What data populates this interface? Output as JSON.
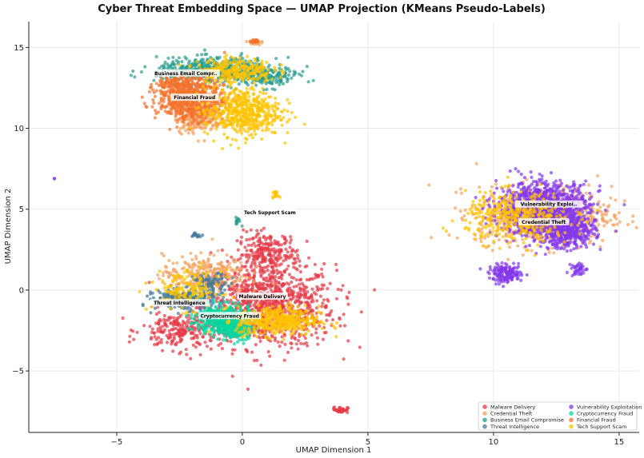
{
  "chart_data": {
    "type": "scatter",
    "title": "Cyber Threat Embedding Space — UMAP Projection (KMeans Pseudo-Labels)",
    "xlabel": "UMAP Dimension 1",
    "ylabel": "UMAP Dimension 2",
    "xlim": [
      -8.5,
      15.8
    ],
    "ylim": [
      -8.8,
      16.6
    ],
    "xticks": [
      -5,
      0,
      5,
      10,
      15
    ],
    "yticks": [
      -5,
      0,
      5,
      10,
      15
    ],
    "xtick_labels": [
      "−5",
      "0",
      "5",
      "10",
      "15"
    ],
    "ytick_labels": [
      "−5",
      "0",
      "5",
      "10",
      "15"
    ],
    "grid": true,
    "legend_position": "bottom-right",
    "series": [
      {
        "name": "Malware Delivery",
        "color": "#e63946",
        "blobs": [
          {
            "cx": 1.0,
            "cy": -1.0,
            "sx": 1.8,
            "sy": 1.7,
            "n": 950
          },
          {
            "cx": 1.0,
            "cy": 2.2,
            "sx": 0.8,
            "sy": 0.9,
            "n": 250
          },
          {
            "cx": -2.5,
            "cy": -2.5,
            "sx": 1.0,
            "sy": 0.8,
            "n": 220
          },
          {
            "cx": 3.9,
            "cy": -7.4,
            "sx": 0.2,
            "sy": 0.12,
            "n": 40
          }
        ]
      },
      {
        "name": "Credential Theft",
        "color": "#f4a261",
        "blobs": [
          {
            "cx": 12.0,
            "cy": 4.6,
            "sx": 1.8,
            "sy": 1.2,
            "n": 700
          },
          {
            "cx": -1.5,
            "cy": 1.0,
            "sx": 1.1,
            "sy": 0.8,
            "n": 260
          },
          {
            "cx": -1.8,
            "cy": 10.6,
            "sx": 0.6,
            "sy": 0.6,
            "n": 150
          },
          {
            "cx": 0.5,
            "cy": 15.3,
            "sx": 0.15,
            "sy": 0.1,
            "n": 20
          }
        ]
      },
      {
        "name": "Business Email Compromise",
        "color": "#2a9d8f",
        "blobs": [
          {
            "cx": -1.0,
            "cy": 13.6,
            "sx": 1.6,
            "sy": 0.5,
            "n": 520
          },
          {
            "cx": 1.0,
            "cy": 13.1,
            "sx": 0.8,
            "sy": 0.4,
            "n": 120
          },
          {
            "cx": -0.2,
            "cy": 4.3,
            "sx": 0.1,
            "sy": 0.15,
            "n": 15
          }
        ]
      },
      {
        "name": "Threat Intelligence",
        "color": "#457b9d",
        "blobs": [
          {
            "cx": -2.3,
            "cy": -0.6,
            "sx": 0.8,
            "sy": 0.4,
            "n": 320
          },
          {
            "cx": -1.2,
            "cy": 0.4,
            "sx": 0.5,
            "sy": 0.4,
            "n": 80
          },
          {
            "cx": -1.8,
            "cy": 3.4,
            "sx": 0.15,
            "sy": 0.1,
            "n": 15
          }
        ]
      },
      {
        "name": "Vulnerability Exploitation",
        "color": "#8338ec",
        "blobs": [
          {
            "cx": 12.0,
            "cy": 5.0,
            "sx": 1.2,
            "sy": 1.1,
            "n": 1100
          },
          {
            "cx": 13.0,
            "cy": 3.6,
            "sx": 0.7,
            "sy": 0.7,
            "n": 350
          },
          {
            "cx": 10.5,
            "cy": 1.0,
            "sx": 0.45,
            "sy": 0.35,
            "n": 160
          },
          {
            "cx": 13.4,
            "cy": 1.3,
            "sx": 0.2,
            "sy": 0.3,
            "n": 40
          },
          {
            "cx": -7.5,
            "cy": 6.9,
            "sx": 0.04,
            "sy": 0.04,
            "n": 2
          }
        ]
      },
      {
        "name": "Cryptocurrency Fraud",
        "color": "#06d6a0",
        "blobs": [
          {
            "cx": -0.8,
            "cy": -1.8,
            "sx": 0.7,
            "sy": 0.6,
            "n": 450
          },
          {
            "cx": -0.2,
            "cy": -2.6,
            "sx": 0.4,
            "sy": 0.4,
            "n": 120
          }
        ]
      },
      {
        "name": "Financial Fraud",
        "color": "#f3722c",
        "blobs": [
          {
            "cx": -2.0,
            "cy": 11.8,
            "sx": 0.9,
            "sy": 0.9,
            "n": 650
          },
          {
            "cx": -2.6,
            "cy": 12.6,
            "sx": 0.5,
            "sy": 0.4,
            "n": 120
          },
          {
            "cx": 0.5,
            "cy": 15.4,
            "sx": 0.12,
            "sy": 0.08,
            "n": 20
          }
        ]
      },
      {
        "name": "Tech Support Scam",
        "color": "#ffc300",
        "blobs": [
          {
            "cx": 1.4,
            "cy": -1.9,
            "sx": 1.1,
            "sy": 0.6,
            "n": 420
          },
          {
            "cx": 0.0,
            "cy": 11.0,
            "sx": 1.0,
            "sy": 1.0,
            "n": 520
          },
          {
            "cx": -0.3,
            "cy": 13.6,
            "sx": 1.0,
            "sy": 0.5,
            "n": 260
          },
          {
            "cx": 11.0,
            "cy": 4.5,
            "sx": 1.4,
            "sy": 1.0,
            "n": 400
          },
          {
            "cx": 1.3,
            "cy": 5.9,
            "sx": 0.08,
            "sy": 0.12,
            "n": 15
          },
          {
            "cx": -2.2,
            "cy": 0.0,
            "sx": 0.9,
            "sy": 0.8,
            "n": 150
          }
        ]
      }
    ],
    "cluster_labels": [
      {
        "text": "Business Email Compr..",
        "x": -2.25,
        "y": 13.4
      },
      {
        "text": "Financial Fraud",
        "x": -1.9,
        "y": 11.9
      },
      {
        "text": "Tech Support Scam",
        "x": 1.1,
        "y": 4.8
      },
      {
        "text": "Vulnerability Exploi..",
        "x": 12.2,
        "y": 5.3
      },
      {
        "text": "Credential Theft",
        "x": 12.0,
        "y": 4.2
      },
      {
        "text": "Malware Delivery",
        "x": 0.8,
        "y": -0.4
      },
      {
        "text": "Threat Intelligence",
        "x": -2.5,
        "y": -0.8
      },
      {
        "text": "Cryptocurrency Fraud",
        "x": -0.5,
        "y": -1.6
      }
    ]
  }
}
